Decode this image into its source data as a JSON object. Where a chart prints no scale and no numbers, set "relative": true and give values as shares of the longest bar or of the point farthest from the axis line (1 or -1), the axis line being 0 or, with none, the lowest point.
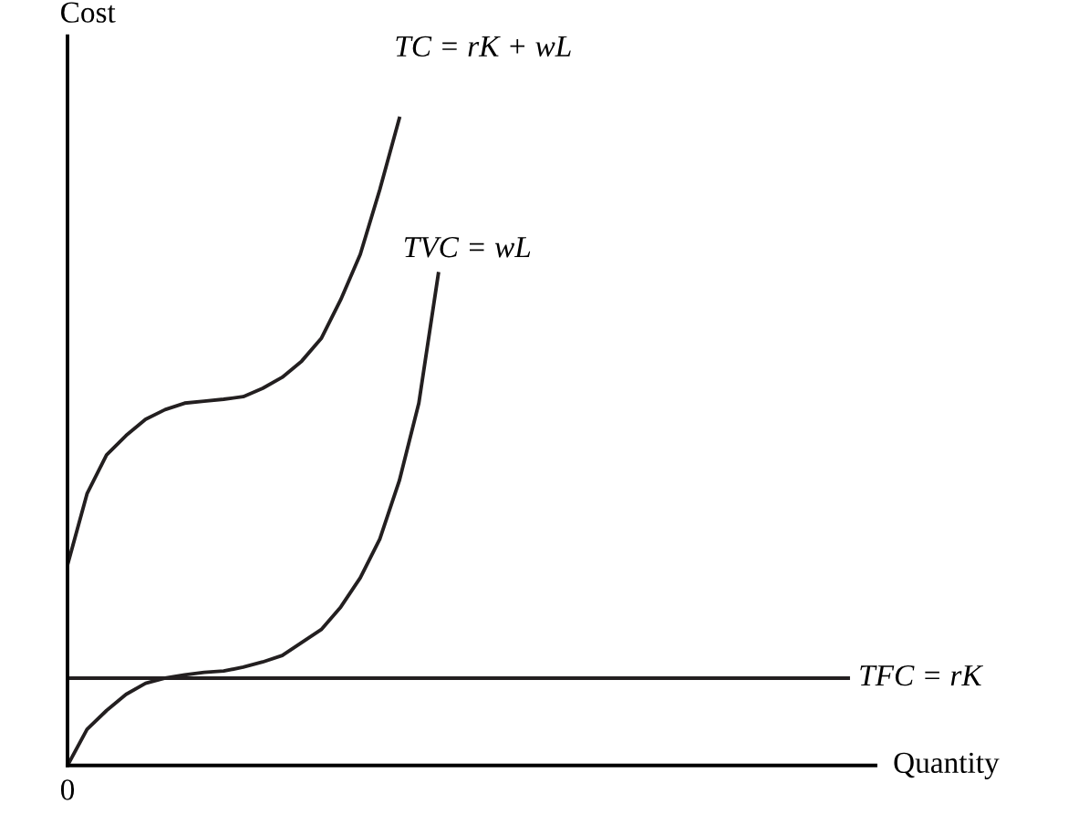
{
  "chart_data": {
    "type": "line",
    "relative": true,
    "ylabel": "Cost",
    "xlabel": "Quantity",
    "annotations": [
      "0"
    ],
    "legend": false,
    "marker": "none",
    "line_style": "solid",
    "categories": [
      null,
      null,
      null,
      null,
      null,
      null,
      null,
      null,
      null,
      null,
      null,
      null,
      null,
      null,
      null,
      null,
      null,
      null,
      null,
      null,
      null,
      null,
      null,
      null,
      null,
      null,
      null,
      null,
      null,
      null,
      null,
      null,
      null,
      null,
      null,
      null,
      null,
      null,
      null,
      null,
      null
    ],
    "series": [
      {
        "name": "TC = rK + wL",
        "color": "#231f20",
        "values": [
          0.31,
          0.42,
          0.48,
          0.51,
          0.535,
          0.55,
          0.56,
          0.563,
          0.566,
          0.57,
          0.583,
          0.6,
          0.625,
          0.66,
          0.72,
          0.79,
          0.89,
          1.0,
          null,
          null,
          null,
          null,
          null,
          null,
          null,
          null,
          null,
          null,
          null,
          null,
          null,
          null,
          null,
          null,
          null,
          null,
          null,
          null,
          null,
          null,
          null
        ]
      },
      {
        "name": "TVC = wL",
        "color": "#231f20",
        "values": [
          0,
          0.056,
          0.085,
          0.11,
          0.127,
          0.135,
          0.14,
          0.144,
          0.146,
          0.152,
          0.16,
          0.17,
          0.19,
          0.21,
          0.245,
          0.29,
          0.35,
          0.44,
          0.56,
          0.76,
          null,
          null,
          null,
          null,
          null,
          null,
          null,
          null,
          null,
          null,
          null,
          null,
          null,
          null,
          null,
          null,
          null,
          null,
          null,
          null,
          null
        ]
      },
      {
        "name": "TFC = rK",
        "color": "#231f20",
        "values": [
          0.135,
          0.135,
          0.135,
          0.135,
          0.135,
          0.135,
          0.135,
          0.135,
          0.135,
          0.135,
          0.135,
          0.135,
          0.135,
          0.135,
          0.135,
          0.135,
          0.135,
          0.135,
          0.135,
          0.135,
          0.135,
          0.135,
          0.135,
          0.135,
          0.135,
          0.135,
          0.135,
          0.135,
          0.135,
          0.135,
          0.135,
          0.135,
          0.135,
          0.135,
          0.135,
          0.135,
          0.135,
          0.135,
          0.135,
          0.135,
          0.135
        ]
      }
    ]
  }
}
